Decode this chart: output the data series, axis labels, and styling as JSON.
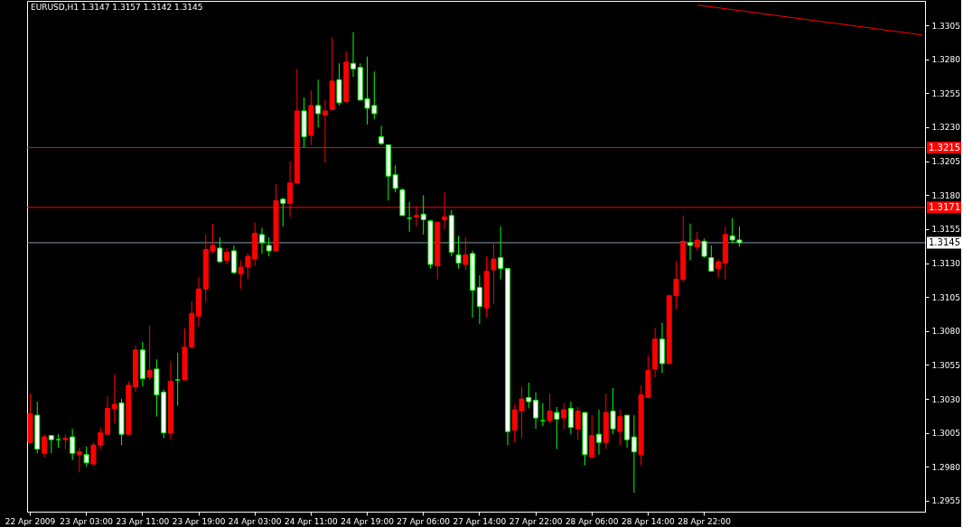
{
  "chart_data": {
    "type": "candlestick",
    "title": "EURUSD,H1 1.3147 1.3157 1.3142 1.3145",
    "categories": [
      "22 Apr 2009",
      null,
      null,
      null,
      null,
      null,
      null,
      null,
      "23 Apr 03:00",
      null,
      null,
      null,
      null,
      null,
      null,
      null,
      "23 Apr 11:00",
      null,
      null,
      null,
      null,
      null,
      null,
      null,
      "23 Apr 19:00",
      null,
      null,
      null,
      null,
      null,
      null,
      null,
      "24 Apr 03:00",
      null,
      null,
      null,
      null,
      null,
      null,
      null,
      "24 Apr 11:00",
      null,
      null,
      null,
      null,
      null,
      null,
      null,
      "24 Apr 19:00",
      null,
      null,
      null,
      null,
      null,
      null,
      null,
      "27 Apr 06:00",
      null,
      null,
      null,
      null,
      null,
      null,
      null,
      "27 Apr 14:00",
      null,
      null,
      null,
      null,
      null,
      null,
      null,
      "27 Apr 22:00",
      null,
      null,
      null,
      null,
      null,
      null,
      null,
      "28 Apr 06:00",
      null,
      null,
      null,
      null,
      null,
      null,
      null,
      "28 Apr 14:00",
      null,
      null,
      null,
      null,
      null,
      null,
      null,
      "28 Apr 22:00",
      null,
      null,
      null,
      null,
      null,
      null,
      null,
      null,
      null,
      null,
      null,
      null,
      null,
      null,
      null,
      null,
      null,
      null,
      null,
      null,
      null,
      null,
      null,
      null,
      null,
      null,
      null,
      null,
      null,
      null,
      null
    ],
    "ohlc": [
      [
        1.2998,
        1.3034,
        1.2997,
        1.3019
      ],
      [
        1.3018,
        1.3028,
        1.299,
        1.2993
      ],
      [
        1.299,
        1.3004,
        1.2987,
        1.3002
      ],
      [
        1.3003,
        1.3003,
        1.299,
        1.3
      ],
      [
        1.3,
        1.3004,
        1.2994,
        1.3
      ],
      [
        1.3,
        1.3004,
        1.2993,
        1.3001
      ],
      [
        1.3002,
        1.3008,
        1.2985,
        1.299
      ],
      [
        1.2989,
        1.2994,
        1.2976,
        1.2991
      ],
      [
        1.2989,
        1.2995,
        1.298,
        1.2983
      ],
      [
        1.2982,
        1.2998,
        1.2982,
        1.2996
      ],
      [
        1.2996,
        1.3009,
        1.2993,
        1.3005
      ],
      [
        1.3004,
        1.3032,
        1.3004,
        1.3023
      ],
      [
        1.3023,
        1.3048,
        1.3012,
        1.3026
      ],
      [
        1.3027,
        1.303,
        1.2996,
        1.3004
      ],
      [
        1.3004,
        1.3043,
        1.3004,
        1.304
      ],
      [
        1.3039,
        1.3069,
        1.3035,
        1.3066
      ],
      [
        1.3066,
        1.3072,
        1.3039,
        1.3045
      ],
      [
        1.3046,
        1.3084,
        1.3044,
        1.3051
      ],
      [
        1.3052,
        1.3059,
        1.3017,
        1.3033
      ],
      [
        1.3035,
        1.3037,
        1.3001,
        1.3005
      ],
      [
        1.3005,
        1.3058,
        1.3,
        1.3043
      ],
      [
        1.3044,
        1.3064,
        1.3025,
        1.3044
      ],
      [
        1.3044,
        1.3082,
        1.3044,
        1.3068
      ],
      [
        1.3068,
        1.3102,
        1.3068,
        1.3093
      ],
      [
        1.3091,
        1.312,
        1.3083,
        1.3111
      ],
      [
        1.3111,
        1.3151,
        1.3101,
        1.314
      ],
      [
        1.3139,
        1.3159,
        1.3137,
        1.3143
      ],
      [
        1.3141,
        1.3149,
        1.313,
        1.3131
      ],
      [
        1.3132,
        1.3141,
        1.3129,
        1.3138
      ],
      [
        1.3139,
        1.3143,
        1.3122,
        1.3123
      ],
      [
        1.3122,
        1.3132,
        1.3111,
        1.3127
      ],
      [
        1.3127,
        1.3137,
        1.3118,
        1.3135
      ],
      [
        1.3133,
        1.316,
        1.3128,
        1.3152
      ],
      [
        1.3151,
        1.3156,
        1.3137,
        1.3145
      ],
      [
        1.3143,
        1.3149,
        1.3135,
        1.3139
      ],
      [
        1.3139,
        1.3188,
        1.3139,
        1.3176
      ],
      [
        1.3177,
        1.3178,
        1.3157,
        1.3174
      ],
      [
        1.3174,
        1.3205,
        1.3164,
        1.3189
      ],
      [
        1.3189,
        1.3273,
        1.3188,
        1.3242
      ],
      [
        1.3242,
        1.3252,
        1.3215,
        1.3223
      ],
      [
        1.3224,
        1.3257,
        1.3217,
        1.3246
      ],
      [
        1.3246,
        1.3265,
        1.323,
        1.324
      ],
      [
        1.3239,
        1.325,
        1.3204,
        1.3242
      ],
      [
        1.3243,
        1.3296,
        1.3243,
        1.3264
      ],
      [
        1.3265,
        1.3277,
        1.3246,
        1.3248
      ],
      [
        1.3249,
        1.3286,
        1.3248,
        1.3278
      ],
      [
        1.3277,
        1.33,
        1.3267,
        1.3273
      ],
      [
        1.3274,
        1.3277,
        1.325,
        1.325
      ],
      [
        1.3251,
        1.3282,
        1.3232,
        1.3244
      ],
      [
        1.3246,
        1.3271,
        1.3236,
        1.324
      ],
      [
        1.3223,
        1.3231,
        1.3217,
        1.3218
      ],
      [
        1.3217,
        1.3217,
        1.3176,
        1.3194
      ],
      [
        1.3195,
        1.3202,
        1.3182,
        1.3185
      ],
      [
        1.3184,
        1.3185,
        1.3165,
        1.3165
      ],
      [
        1.3163,
        1.3175,
        1.3153,
        1.3163
      ],
      [
        1.3164,
        1.3172,
        1.3157,
        1.3165
      ],
      [
        1.3166,
        1.318,
        1.3151,
        1.3162
      ],
      [
        1.3161,
        1.3162,
        1.3126,
        1.3129
      ],
      [
        1.3128,
        1.316,
        1.3118,
        1.316
      ],
      [
        1.3162,
        1.3182,
        1.3155,
        1.3164
      ],
      [
        1.3165,
        1.3169,
        1.3135,
        1.3138
      ],
      [
        1.3136,
        1.315,
        1.3126,
        1.313
      ],
      [
        1.3129,
        1.3149,
        1.3125,
        1.3136
      ],
      [
        1.3137,
        1.3139,
        1.309,
        1.311
      ],
      [
        1.3112,
        1.3121,
        1.3085,
        1.3098
      ],
      [
        1.3097,
        1.3135,
        1.309,
        1.3124
      ],
      [
        1.3125,
        1.3144,
        1.31,
        1.3133
      ],
      [
        1.3134,
        1.3157,
        1.3118,
        1.3126
      ],
      [
        1.3126,
        1.3126,
        1.2996,
        1.3006
      ],
      [
        1.3007,
        1.3026,
        1.2998,
        1.3022
      ],
      [
        1.3021,
        1.3039,
        1.3001,
        1.303
      ],
      [
        1.3031,
        1.3042,
        1.3023,
        1.3028
      ],
      [
        1.3029,
        1.3035,
        1.3008,
        1.3016
      ],
      [
        1.3014,
        1.3027,
        1.301,
        1.3014
      ],
      [
        1.3014,
        1.3034,
        1.3012,
        1.3021
      ],
      [
        1.302,
        1.3024,
        1.2993,
        1.3015
      ],
      [
        1.3016,
        1.3027,
        1.3008,
        1.3022
      ],
      [
        1.3023,
        1.3028,
        1.3004,
        1.3009
      ],
      [
        1.3008,
        1.3024,
        1.3,
        1.3021
      ],
      [
        1.302,
        1.302,
        1.2981,
        1.2989
      ],
      [
        1.2987,
        1.3018,
        1.2987,
        1.3003
      ],
      [
        1.3004,
        1.3022,
        1.2989,
        1.2998
      ],
      [
        1.2998,
        1.3034,
        1.2993,
        1.302
      ],
      [
        1.3021,
        1.3038,
        1.3004,
        1.3008
      ],
      [
        1.3006,
        1.3022,
        1.2996,
        1.3017
      ],
      [
        1.3018,
        1.3018,
        1.2994,
        1.3
      ],
      [
        1.3002,
        1.3018,
        1.2961,
        1.2991
      ],
      [
        1.2989,
        1.304,
        1.2981,
        1.3033
      ],
      [
        1.3031,
        1.3062,
        1.3031,
        1.3051
      ],
      [
        1.3052,
        1.3082,
        1.3046,
        1.3074
      ],
      [
        1.3074,
        1.3086,
        1.3049,
        1.3056
      ],
      [
        1.3056,
        1.3106,
        1.3056,
        1.3106
      ],
      [
        1.3106,
        1.3131,
        1.3096,
        1.3118
      ],
      [
        1.3118,
        1.3165,
        1.3116,
        1.3146
      ],
      [
        1.3145,
        1.3159,
        1.3132,
        1.3143
      ],
      [
        1.3142,
        1.3153,
        1.3139,
        1.3147
      ],
      [
        1.3146,
        1.3148,
        1.3134,
        1.3135
      ],
      [
        1.3134,
        1.3143,
        1.3124,
        1.3124
      ],
      [
        1.3126,
        1.3133,
        1.3119,
        1.3131
      ],
      [
        1.313,
        1.3157,
        1.3118,
        1.3151
      ],
      [
        1.315,
        1.3163,
        1.3145,
        1.3147
      ],
      [
        1.3147,
        1.3157,
        1.3142,
        1.3145
      ],
      null,
      null,
      null,
      null,
      null,
      null,
      null,
      null,
      null,
      null,
      null,
      null,
      null,
      null,
      null,
      null,
      null,
      null,
      null,
      null,
      null,
      null,
      null,
      null,
      null,
      null
    ],
    "colors": [
      "#ff0000",
      "#00ff00",
      "#ff0000",
      "#00ff00",
      "#00ff00",
      "#ff0000",
      "#00ff00",
      "#ff0000",
      "#00ff00",
      "#ff0000",
      "#ff0000",
      "#ff0000",
      "#ff0000",
      "#00ff00",
      "#ff0000",
      "#ff0000",
      "#00ff00",
      "#ff0000",
      "#00ff00",
      "#00ff00",
      "#ff0000",
      "#00ff00",
      "#ff0000",
      "#ff0000",
      "#ff0000",
      "#ff0000",
      "#ff0000",
      "#00ff00",
      "#ff0000",
      "#00ff00",
      "#ff0000",
      "#ff0000",
      "#ff0000",
      "#00ff00",
      "#00ff00",
      "#ff0000",
      "#00ff00",
      "#ff0000",
      "#ff0000",
      "#00ff00",
      "#ff0000",
      "#00ff00",
      "#ff0000",
      "#ff0000",
      "#00ff00",
      "#ff0000",
      "#00ff00",
      "#00ff00",
      "#00ff00",
      "#00ff00",
      "#00ff00",
      "#00ff00",
      "#00ff00",
      "#00ff00",
      "#00ff00",
      "#ff0000",
      "#00ff00",
      "#00ff00",
      "#ff0000",
      "#ff0000",
      "#00ff00",
      "#00ff00",
      "#ff0000",
      "#00ff00",
      "#00ff00",
      "#ff0000",
      "#ff0000",
      "#00ff00",
      "#00ff00",
      "#ff0000",
      "#ff0000",
      "#00ff00",
      "#00ff00",
      "#00ff00",
      "#ff0000",
      "#00ff00",
      "#ff0000",
      "#00ff00",
      "#ff0000",
      "#00ff00",
      "#ff0000",
      "#00ff00",
      "#ff0000",
      "#00ff00",
      "#ff0000",
      "#00ff00",
      "#00ff00",
      "#ff0000",
      "#ff0000",
      "#ff0000",
      "#00ff00",
      "#ff0000",
      "#ff0000",
      "#ff0000",
      "#00ff00",
      "#ff0000",
      "#00ff00",
      "#00ff00",
      "#ff0000",
      "#ff0000",
      "#00ff00",
      "#00ff00",
      null,
      null,
      null,
      null,
      null,
      null,
      null,
      null,
      null,
      null,
      null,
      null,
      null,
      null,
      null,
      null,
      null,
      null,
      null,
      null,
      null,
      null,
      null,
      null,
      null,
      null
    ],
    "series": [
      {
        "type": "line",
        "color": "#ff0000",
        "values": [
          null,
          null,
          null,
          null,
          null,
          null,
          null,
          null,
          null,
          null,
          null,
          null,
          null,
          null,
          null,
          null,
          null,
          null,
          null,
          null,
          null,
          null,
          null,
          null,
          null,
          null,
          null,
          null,
          null,
          null,
          null,
          null,
          null,
          null,
          null,
          null,
          null,
          null,
          null,
          null,
          null,
          null,
          null,
          null,
          null,
          null,
          null,
          null,
          null,
          null,
          null,
          null,
          null,
          null,
          null,
          null,
          null,
          null,
          null,
          null,
          null,
          null,
          null,
          null,
          null,
          null,
          null,
          null,
          null,
          null,
          null,
          null,
          null,
          null,
          null,
          null,
          null,
          null,
          null,
          null,
          null,
          null,
          null,
          null,
          null,
          null,
          null,
          null,
          null,
          null,
          null,
          null,
          null,
          null,
          null,
          1.332,
          null,
          null,
          null,
          null,
          null,
          null,
          null,
          null,
          null,
          null,
          null,
          null,
          null,
          null,
          null,
          null,
          null,
          null,
          null,
          null,
          null,
          null,
          null,
          null,
          null,
          null,
          null,
          null,
          null,
          null,
          null,
          1.3298
        ]
      }
    ],
    "ylim": [
      1.2947,
      1.3323
    ],
    "yticks": [
      1.2955,
      {
        "value": 1.298,
        "label": "1.2980"
      },
      1.3005,
      {
        "value": 1.303,
        "label": "1.3030"
      },
      1.3055,
      {
        "value": 1.308,
        "label": "1.3080"
      },
      1.3105,
      {
        "value": 1.313,
        "label": "1.3130"
      },
      1.3155,
      {
        "value": 1.318,
        "label": "1.3180"
      },
      1.3205,
      {
        "value": 1.323,
        "label": "1.3230"
      },
      1.3255,
      {
        "value": 1.328,
        "label": "1.3280"
      },
      1.3305
    ],
    "ref_lines": [
      {
        "axis": "y",
        "value": 1.3215,
        "label": "1.3215",
        "color": "#ff0000"
      },
      {
        "axis": "y",
        "value": 1.3171,
        "label": "1.3171",
        "color": "#ff0000"
      },
      {
        "axis": "y",
        "value": 1.3145,
        "label": "1.3145",
        "color": "#8899aa"
      }
    ],
    "grid": false
  }
}
